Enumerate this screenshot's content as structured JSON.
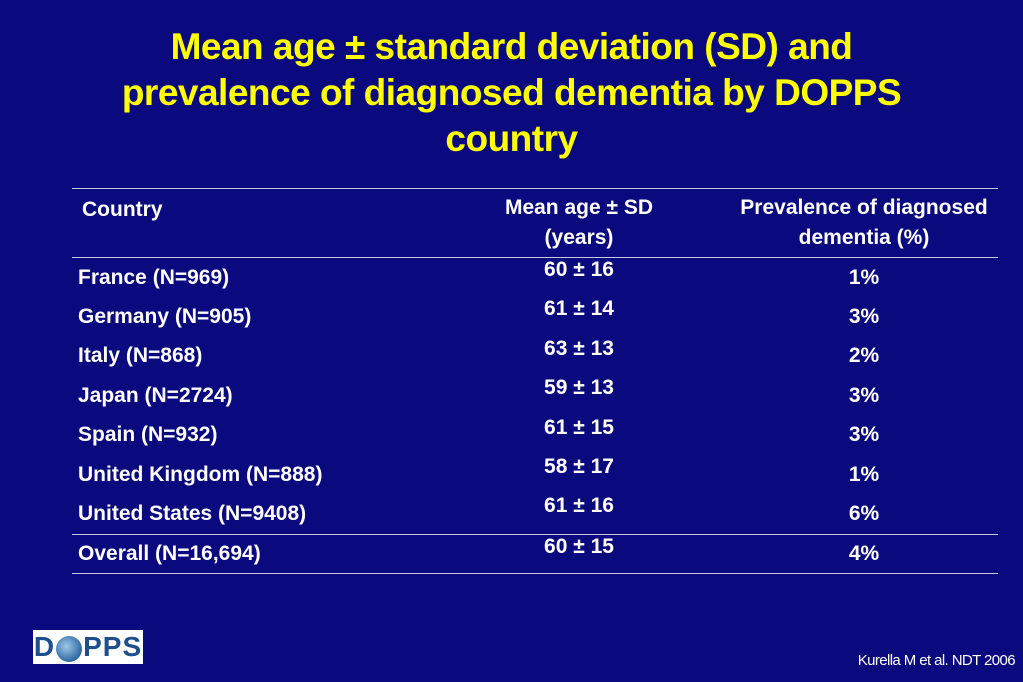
{
  "slide": {
    "title_lines": [
      "Mean age ± standard deviation (SD) and",
      "prevalence of diagnosed dementia by DOPPS",
      "country"
    ]
  },
  "table": {
    "headers": {
      "country": "Country",
      "age_line1": "Mean age ± SD",
      "age_line2": "(years)",
      "prev_line1": "Prevalence of diagnosed",
      "prev_line2": "dementia (%)"
    },
    "rows": [
      {
        "country": "France (N=969)",
        "age": "60 ± 16",
        "prevalence": "1%"
      },
      {
        "country": "Germany (N=905)",
        "age": "61 ± 14",
        "prevalence": "3%"
      },
      {
        "country": "Italy (N=868)",
        "age": "63 ± 13",
        "prevalence": "2%"
      },
      {
        "country": "Japan (N=2724)",
        "age": "59 ± 13",
        "prevalence": "3%"
      },
      {
        "country": "Spain (N=932)",
        "age": "61 ± 15",
        "prevalence": "3%"
      },
      {
        "country": "United Kingdom (N=888)",
        "age": "58 ± 17",
        "prevalence": "1%"
      },
      {
        "country": "United States (N=9408)",
        "age": "61 ± 16",
        "prevalence": "6%"
      }
    ],
    "overall": {
      "country": "Overall (N=16,694)",
      "age": "60 ± 15",
      "prevalence": "4%"
    }
  },
  "logo": {
    "left": "D",
    "right": "PPS"
  },
  "citation": "Kurella M et al. NDT 2006",
  "colors": {
    "background": "#0a0a7e",
    "title": "#ffff00",
    "text": "#ffffff",
    "rule": "#c8c8e0"
  }
}
